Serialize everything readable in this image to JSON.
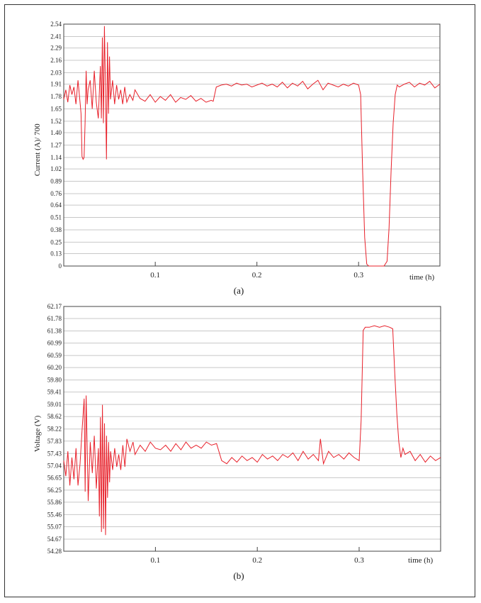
{
  "colors": {
    "series": "#e8202a",
    "grid": "#c8c8c8",
    "axis": "#444444"
  },
  "chart_data": [
    {
      "type": "line",
      "caption": "(a)",
      "ylabel": "Current (A)/ 700",
      "xlabel": "time (h)",
      "xlim": [
        0.01,
        0.38
      ],
      "ylim": [
        0,
        2.54
      ],
      "x_ticks": [
        0.1,
        0.2,
        0.3
      ],
      "x_tick_labels": [
        "0.1",
        "0.2",
        "0.3"
      ],
      "y_ticks": [
        0,
        0.13,
        0.25,
        0.38,
        0.51,
        0.64,
        0.76,
        0.89,
        1.02,
        1.14,
        1.27,
        1.4,
        1.52,
        1.65,
        1.78,
        1.91,
        2.03,
        2.16,
        2.29,
        2.41,
        2.54
      ],
      "y_tick_labels": [
        "0",
        "0.13",
        "0.25",
        "0.38",
        "0.51",
        "0.64",
        "0.76",
        "0.89",
        "1.02",
        "1.14",
        "1.27",
        "1.40",
        "1.52",
        "1.65",
        "1.78",
        "1.91",
        "2.03",
        "2.16",
        "2.29",
        "2.41",
        "2.54"
      ],
      "grid": true,
      "series": [
        {
          "x": [
            0.01,
            0.012,
            0.014,
            0.016,
            0.018,
            0.02,
            0.022,
            0.024,
            0.026,
            0.027,
            0.028,
            0.029,
            0.03,
            0.031,
            0.032,
            0.033,
            0.034,
            0.036,
            0.038,
            0.04,
            0.042,
            0.044,
            0.046,
            0.047,
            0.048,
            0.049,
            0.05,
            0.051,
            0.052,
            0.053,
            0.054,
            0.055,
            0.056,
            0.058,
            0.06,
            0.062,
            0.064,
            0.066,
            0.068,
            0.07,
            0.072,
            0.075,
            0.078,
            0.08,
            0.085,
            0.09,
            0.095,
            0.1,
            0.105,
            0.11,
            0.115,
            0.12,
            0.125,
            0.13,
            0.135,
            0.14,
            0.145,
            0.15,
            0.155,
            0.157,
            0.16,
            0.165,
            0.17,
            0.175,
            0.18,
            0.185,
            0.19,
            0.195,
            0.2,
            0.205,
            0.21,
            0.215,
            0.22,
            0.225,
            0.23,
            0.235,
            0.24,
            0.245,
            0.25,
            0.255,
            0.26,
            0.265,
            0.27,
            0.275,
            0.28,
            0.285,
            0.29,
            0.295,
            0.3,
            0.302,
            0.304,
            0.306,
            0.308,
            0.31,
            0.315,
            0.32,
            0.325,
            0.328,
            0.33,
            0.332,
            0.334,
            0.336,
            0.338,
            0.34,
            0.345,
            0.35,
            0.355,
            0.36,
            0.365,
            0.37,
            0.375,
            0.38
          ],
          "y": [
            1.75,
            1.85,
            1.72,
            1.9,
            1.8,
            1.88,
            1.7,
            1.95,
            1.72,
            1.6,
            1.15,
            1.12,
            1.14,
            1.5,
            2.05,
            1.7,
            1.85,
            1.95,
            1.65,
            2.05,
            1.72,
            1.55,
            2.1,
            1.55,
            2.4,
            1.5,
            2.52,
            1.9,
            1.12,
            2.35,
            1.6,
            2.2,
            1.75,
            1.95,
            1.7,
            1.9,
            1.75,
            1.85,
            1.7,
            1.88,
            1.72,
            1.8,
            1.74,
            1.85,
            1.76,
            1.73,
            1.8,
            1.72,
            1.78,
            1.74,
            1.8,
            1.72,
            1.77,
            1.75,
            1.79,
            1.73,
            1.76,
            1.72,
            1.74,
            1.73,
            1.88,
            1.9,
            1.91,
            1.89,
            1.92,
            1.9,
            1.91,
            1.88,
            1.9,
            1.92,
            1.89,
            1.91,
            1.88,
            1.93,
            1.87,
            1.92,
            1.89,
            1.94,
            1.86,
            1.91,
            1.95,
            1.85,
            1.92,
            1.9,
            1.88,
            1.91,
            1.89,
            1.92,
            1.9,
            1.8,
            1.0,
            0.3,
            0.02,
            0.0,
            0.0,
            0.0,
            0.0,
            0.05,
            0.4,
            1.0,
            1.5,
            1.8,
            1.9,
            1.88,
            1.91,
            1.93,
            1.88,
            1.92,
            1.9,
            1.94,
            1.87,
            1.91
          ]
        }
      ]
    },
    {
      "type": "line",
      "caption": "(b)",
      "ylabel": "Voltage (V)",
      "xlabel": "time (h)",
      "xlim": [
        0.01,
        0.38
      ],
      "ylim": [
        54.28,
        62.17
      ],
      "x_ticks": [
        0.1,
        0.2,
        0.3
      ],
      "x_tick_labels": [
        "0.1",
        "0.2",
        "0.3"
      ],
      "y_ticks": [
        54.28,
        54.67,
        55.07,
        55.46,
        55.86,
        56.25,
        56.65,
        57.04,
        57.43,
        57.83,
        58.22,
        58.62,
        59.01,
        59.41,
        59.8,
        60.2,
        60.59,
        60.99,
        61.38,
        61.78,
        62.17
      ],
      "y_tick_labels": [
        "54.28",
        "54.67",
        "55.07",
        "55.46",
        "55.86",
        "56.25",
        "56.65",
        "57.04",
        "57.43",
        "57.83",
        "58.22",
        "58.62",
        "59.01",
        "59.41",
        "59.80",
        "60.20",
        "60.59",
        "60.99",
        "61.38",
        "61.78",
        "62.17"
      ],
      "grid": true,
      "series": [
        {
          "x": [
            0.01,
            0.012,
            0.014,
            0.016,
            0.018,
            0.02,
            0.022,
            0.024,
            0.026,
            0.028,
            0.03,
            0.031,
            0.032,
            0.033,
            0.034,
            0.036,
            0.038,
            0.04,
            0.042,
            0.044,
            0.045,
            0.046,
            0.047,
            0.048,
            0.049,
            0.05,
            0.051,
            0.052,
            0.053,
            0.054,
            0.055,
            0.056,
            0.058,
            0.06,
            0.062,
            0.064,
            0.066,
            0.068,
            0.07,
            0.072,
            0.075,
            0.078,
            0.08,
            0.085,
            0.09,
            0.095,
            0.1,
            0.105,
            0.11,
            0.115,
            0.12,
            0.125,
            0.13,
            0.135,
            0.14,
            0.145,
            0.15,
            0.155,
            0.16,
            0.165,
            0.17,
            0.175,
            0.18,
            0.185,
            0.19,
            0.195,
            0.2,
            0.205,
            0.21,
            0.215,
            0.22,
            0.225,
            0.23,
            0.235,
            0.24,
            0.245,
            0.25,
            0.255,
            0.26,
            0.262,
            0.265,
            0.27,
            0.275,
            0.28,
            0.285,
            0.29,
            0.295,
            0.3,
            0.302,
            0.304,
            0.306,
            0.31,
            0.315,
            0.32,
            0.325,
            0.33,
            0.333,
            0.335,
            0.337,
            0.339,
            0.341,
            0.343,
            0.345,
            0.35,
            0.355,
            0.36,
            0.365,
            0.37,
            0.375,
            0.38
          ],
          "y": [
            57.2,
            56.7,
            57.5,
            56.4,
            57.3,
            56.6,
            57.6,
            56.4,
            57.1,
            58.2,
            59.2,
            56.2,
            59.3,
            57.6,
            55.9,
            57.8,
            56.8,
            58.0,
            56.3,
            57.6,
            55.4,
            58.6,
            54.9,
            59.0,
            55.0,
            58.4,
            54.8,
            58.0,
            56.0,
            57.8,
            56.5,
            57.5,
            56.9,
            57.6,
            57.0,
            57.4,
            56.9,
            57.7,
            57.0,
            57.9,
            57.5,
            57.8,
            57.4,
            57.7,
            57.5,
            57.8,
            57.6,
            57.55,
            57.7,
            57.5,
            57.75,
            57.55,
            57.8,
            57.6,
            57.7,
            57.6,
            57.8,
            57.7,
            57.75,
            57.2,
            57.1,
            57.3,
            57.15,
            57.35,
            57.2,
            57.3,
            57.15,
            57.4,
            57.25,
            57.35,
            57.2,
            57.4,
            57.3,
            57.45,
            57.2,
            57.5,
            57.25,
            57.4,
            57.2,
            57.9,
            57.1,
            57.5,
            57.3,
            57.4,
            57.25,
            57.45,
            57.3,
            57.2,
            58.5,
            61.4,
            61.5,
            61.5,
            61.55,
            61.5,
            61.55,
            61.5,
            61.45,
            60.0,
            58.7,
            57.8,
            57.3,
            57.6,
            57.4,
            57.5,
            57.2,
            57.4,
            57.15,
            57.35,
            57.2,
            57.3
          ]
        }
      ]
    }
  ]
}
